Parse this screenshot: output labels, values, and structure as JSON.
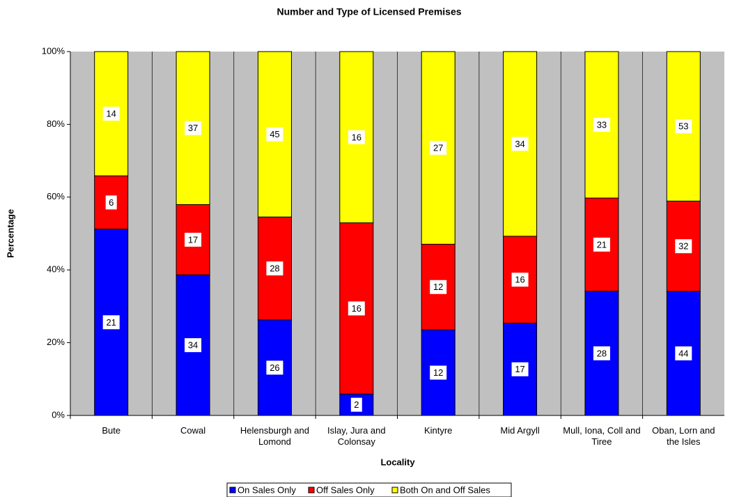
{
  "chart_data": {
    "type": "percent_stacked_bar",
    "title": "Number and Type of Licensed Premises",
    "x_label": "Locality",
    "y_label": "Percentage",
    "categories": [
      "Bute",
      "Cowal",
      "Helensburgh and Lomond",
      "Islay, Jura and Colonsay",
      "Kintyre",
      "Mid Argyll",
      "Mull, Iona, Coll and Tiree",
      "Oban, Lorn and the Isles"
    ],
    "series": [
      {
        "name": "On Sales Only",
        "color": "#0000ff",
        "values": [
          21,
          34,
          26,
          2,
          12,
          17,
          28,
          44
        ]
      },
      {
        "name": "Off Sales Only",
        "color": "#ff0000",
        "values": [
          6,
          17,
          28,
          16,
          12,
          16,
          21,
          32
        ]
      },
      {
        "name": "Both On and Off Sales",
        "color": "#ffff00",
        "values": [
          14,
          37,
          45,
          16,
          27,
          34,
          33,
          53
        ]
      }
    ],
    "ylim": [
      0,
      100
    ],
    "yticks": [
      {
        "value": 0,
        "label": "0%"
      },
      {
        "value": 20,
        "label": "20%"
      },
      {
        "value": 40,
        "label": "40%"
      },
      {
        "value": 60,
        "label": "60%"
      },
      {
        "value": 80,
        "label": "80%"
      },
      {
        "value": 100,
        "label": "100%"
      }
    ],
    "legend": "bottom",
    "background": "#c0c0c0"
  }
}
